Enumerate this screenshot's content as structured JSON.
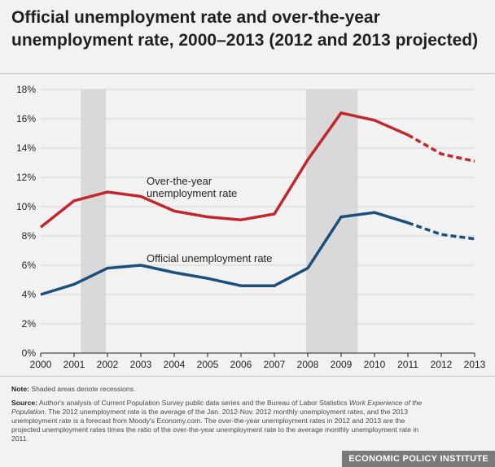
{
  "header": {
    "title": "Official unemployment rate and over-the-year unemployment rate, 2000–2013 (2012 and 2013 projected)"
  },
  "chart_data": {
    "type": "line",
    "title": "Official unemployment rate and over-the-year unemployment rate, 2000–2013 (2012 and 2013 projected)",
    "x": [
      "2000",
      "2001",
      "2002",
      "2003",
      "2004",
      "2005",
      "2006",
      "2007",
      "2008",
      "2009",
      "2010",
      "2011",
      "2012",
      "2013"
    ],
    "ylim": [
      0,
      18
    ],
    "yticks": [
      0,
      2,
      4,
      6,
      8,
      10,
      12,
      14,
      16,
      18
    ],
    "ytick_labels": [
      "0%",
      "2%",
      "4%",
      "6%",
      "8%",
      "10%",
      "12%",
      "14%",
      "16%",
      "18%"
    ],
    "projected_from_index": 11,
    "recessions": [
      [
        2001.2,
        2001.95
      ],
      [
        2007.95,
        2009.5
      ]
    ],
    "series": [
      {
        "name": "Over-the-year unemployment rate",
        "color": "#c1272d",
        "values": [
          8.6,
          10.4,
          11.0,
          10.7,
          9.7,
          9.3,
          9.1,
          9.5,
          13.2,
          16.4,
          15.9,
          14.9,
          13.6,
          13.1
        ]
      },
      {
        "name": "Official unemployment rate",
        "color": "#1b4f7c",
        "values": [
          4.0,
          4.7,
          5.8,
          6.0,
          5.5,
          5.1,
          4.6,
          4.6,
          5.8,
          9.3,
          9.6,
          8.9,
          8.1,
          7.8
        ]
      }
    ],
    "annotations": [
      {
        "line1": "Over-the-year",
        "line2": "unemployment rate"
      },
      {
        "line1": "Official unemployment rate"
      }
    ]
  },
  "notes": {
    "note_label": "Note:",
    "note_text": "Shaded areas denote recessions.",
    "source_label": "Source:",
    "source_text_1": "Author's analysis of Current Population Survey public data series and the Bureau of Labor Statistics",
    "source_italic": "Work Experience of the Population",
    "source_text_2": ". The 2012 unemployment rate is the average of the Jan. 2012-Nov. 2012 monthly unemployment rates, and the 2013 unemployment rate is a forecast from Moody's Economy.com. The over-the-year unemployment rates in 2012 and 2013 are the projected unemployment rates times the ratio of the over-the-year unemployment rate to the average monthly unemployment rate in 2011."
  },
  "footer": {
    "brand": "ECONOMIC POLICY INSTITUTE"
  }
}
